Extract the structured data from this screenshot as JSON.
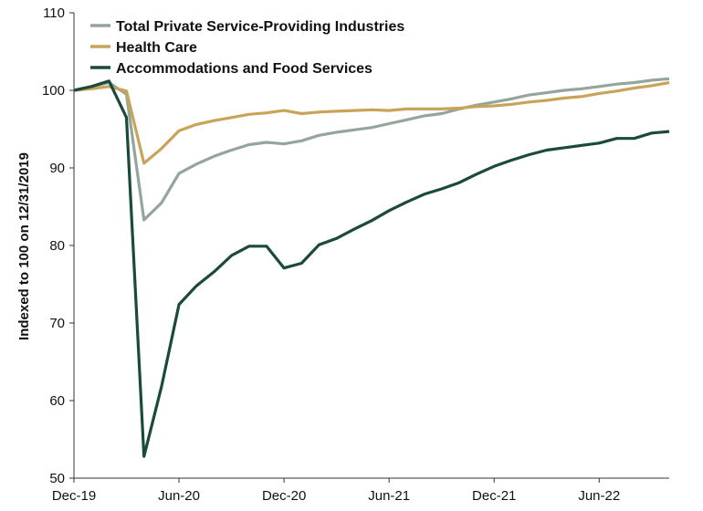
{
  "chart_data": {
    "type": "line",
    "title": "",
    "xlabel": "",
    "ylabel": "Indexed to 100 on 12/31/2019",
    "ylim": [
      50,
      110
    ],
    "yticks": [
      "50",
      "60",
      "70",
      "80",
      "90",
      "100",
      "110"
    ],
    "x": [
      "2019-12",
      "2020-01",
      "2020-02",
      "2020-03",
      "2020-04",
      "2020-05",
      "2020-06",
      "2020-07",
      "2020-08",
      "2020-09",
      "2020-10",
      "2020-11",
      "2020-12",
      "2021-01",
      "2021-02",
      "2021-03",
      "2021-04",
      "2021-05",
      "2021-06",
      "2021-07",
      "2021-08",
      "2021-09",
      "2021-10",
      "2021-11",
      "2021-12",
      "2022-01",
      "2022-02",
      "2022-03",
      "2022-04",
      "2022-05",
      "2022-06",
      "2022-07",
      "2022-08",
      "2022-09",
      "2022-10"
    ],
    "xlim": [
      "2019-12",
      "2022-10"
    ],
    "xtick_labels": [
      {
        "x": "2019-12",
        "label": "Dec-19"
      },
      {
        "x": "2020-06",
        "label": "Jun-20"
      },
      {
        "x": "2020-12",
        "label": "Dec-20"
      },
      {
        "x": "2021-06",
        "label": "Jun-21"
      },
      {
        "x": "2021-12",
        "label": "Dec-21"
      },
      {
        "x": "2022-06",
        "label": "Jun-22"
      }
    ],
    "grid": false,
    "legend_position": "top-left",
    "series": [
      {
        "name": "Total Private Service-Providing Industries",
        "color": "#94a69c",
        "values": [
          100,
          100.5,
          101,
          99.5,
          83.3,
          85.5,
          89.3,
          90.5,
          91.5,
          92.3,
          93,
          93.3,
          93.1,
          93.5,
          94.2,
          94.6,
          94.9,
          95.2,
          95.7,
          96.2,
          96.7,
          97,
          97.6,
          98.1,
          98.5,
          98.9,
          99.4,
          99.7,
          100,
          100.2,
          100.5,
          100.8,
          101,
          101.3,
          101.5
        ]
      },
      {
        "name": "Health Care",
        "color": "#c9a458",
        "values": [
          100,
          100.2,
          100.5,
          99.9,
          90.6,
          92.5,
          94.8,
          95.6,
          96.1,
          96.5,
          96.9,
          97.1,
          97.4,
          97,
          97.2,
          97.3,
          97.4,
          97.5,
          97.4,
          97.6,
          97.6,
          97.6,
          97.7,
          97.9,
          98,
          98.2,
          98.5,
          98.7,
          99,
          99.2,
          99.6,
          99.9,
          100.3,
          100.6,
          101
        ]
      },
      {
        "name": "Accommodations and Food Services",
        "color": "#1a4a3a",
        "values": [
          100,
          100.5,
          101.2,
          96.5,
          52.8,
          61.8,
          72.4,
          74.8,
          76.6,
          78.7,
          79.9,
          79.9,
          77.1,
          77.7,
          80.1,
          80.9,
          82.1,
          83.2,
          84.5,
          85.6,
          86.6,
          87.3,
          88.1,
          89.2,
          90.2,
          91,
          91.7,
          92.3,
          92.6,
          92.9,
          93.2,
          93.8,
          93.8,
          94.5,
          94.7
        ]
      }
    ]
  }
}
